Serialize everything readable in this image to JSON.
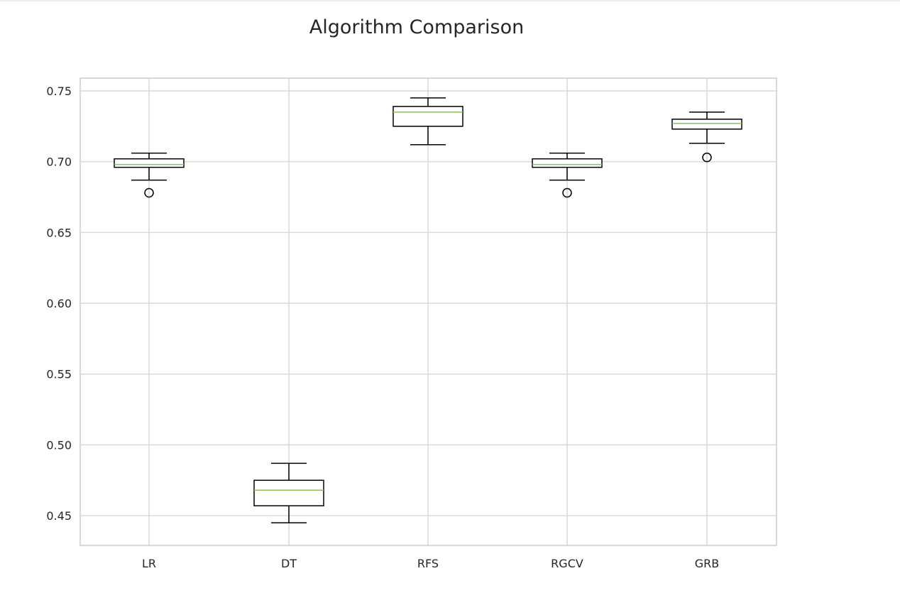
{
  "chart_data": {
    "type": "box",
    "title": "Algorithm Comparison",
    "xlabel": "",
    "ylabel": "",
    "categories": [
      "LR",
      "DT",
      "RFS",
      "RGCV",
      "GRB"
    ],
    "boxes": [
      {
        "label": "LR",
        "whisker_low": 0.687,
        "q1": 0.696,
        "median": 0.698,
        "q3": 0.702,
        "whisker_high": 0.706,
        "outliers": [
          0.678
        ]
      },
      {
        "label": "DT",
        "whisker_low": 0.445,
        "q1": 0.457,
        "median": 0.468,
        "q3": 0.475,
        "whisker_high": 0.487,
        "outliers": []
      },
      {
        "label": "RFS",
        "whisker_low": 0.712,
        "q1": 0.725,
        "median": 0.735,
        "q3": 0.739,
        "whisker_high": 0.745,
        "outliers": []
      },
      {
        "label": "RGCV",
        "whisker_low": 0.687,
        "q1": 0.696,
        "median": 0.698,
        "q3": 0.702,
        "whisker_high": 0.706,
        "outliers": [
          0.678
        ]
      },
      {
        "label": "GRB",
        "whisker_low": 0.713,
        "q1": 0.723,
        "median": 0.727,
        "q3": 0.73,
        "whisker_high": 0.735,
        "outliers": [
          0.703
        ]
      }
    ],
    "ylim": [
      0.429,
      0.759
    ],
    "yticks": [
      0.45,
      0.5,
      0.55,
      0.6,
      0.65,
      0.7,
      0.75
    ],
    "ytick_labels": [
      "0.45",
      "0.50",
      "0.55",
      "0.60",
      "0.65",
      "0.70",
      "0.75"
    ],
    "grid": true,
    "colors": {
      "box_edge": "#000000",
      "median_line": "#8fbf56",
      "grid": "#d9d9d9",
      "frame": "#cccccc",
      "text": "#262626"
    }
  }
}
